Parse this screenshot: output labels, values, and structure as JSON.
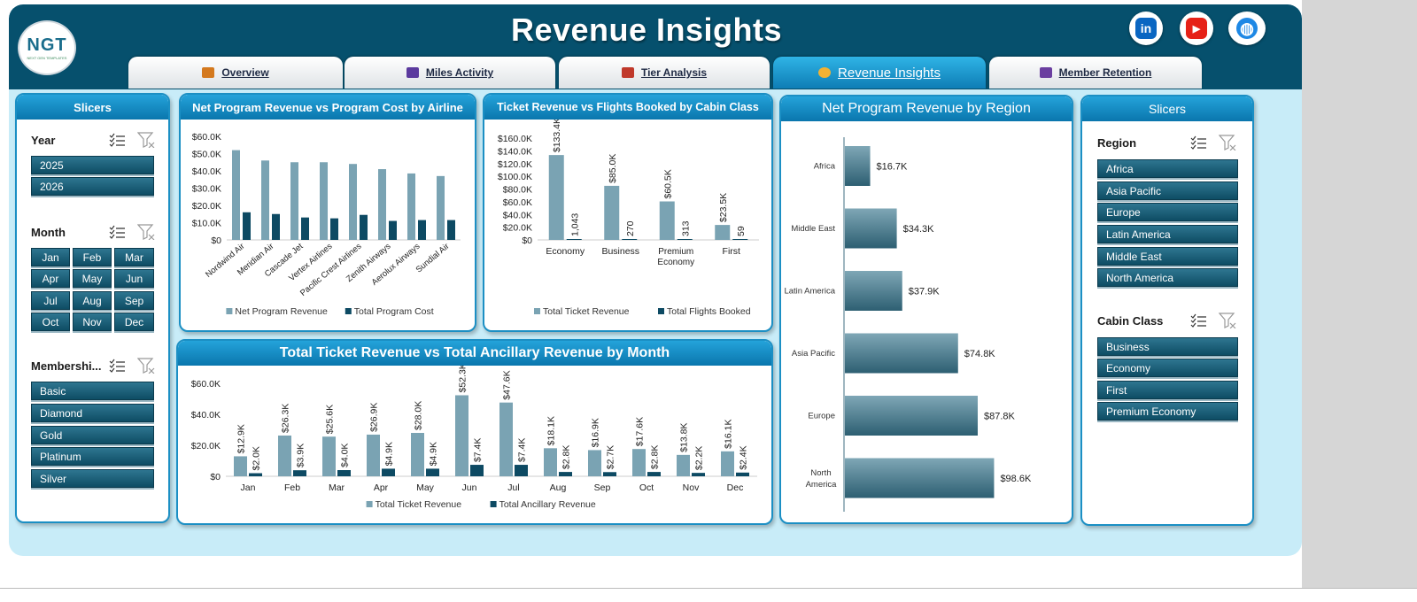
{
  "header": {
    "title": "Revenue Insights",
    "logo_text": "NGT",
    "logo_sub": "NEXT GEN TEMPLATES"
  },
  "social": [
    {
      "name": "linkedin-icon",
      "glyph": "in",
      "color": "#0a66c2"
    },
    {
      "name": "youtube-icon",
      "glyph": "▶",
      "color": "#e62117"
    },
    {
      "name": "globe-icon",
      "glyph": "◍",
      "color": "#1e88e5"
    }
  ],
  "tabs": [
    {
      "label": "Overview",
      "icon_color": "#d4791e",
      "active": false
    },
    {
      "label": "Miles Activity",
      "icon_color": "#5b3a9e",
      "active": false
    },
    {
      "label": "Tier Analysis",
      "icon_color": "#c0392b",
      "active": false
    },
    {
      "label": "Revenue Insights",
      "icon_color": "#f2b233",
      "active": true
    },
    {
      "label": "Member Retention",
      "icon_color": "#6b3fa0",
      "active": false
    }
  ],
  "left_slicers": {
    "title": "Slicers",
    "year": {
      "title": "Year",
      "items": [
        "2025",
        "2026"
      ]
    },
    "month": {
      "title": "Month",
      "items": [
        "Jan",
        "Feb",
        "Mar",
        "Apr",
        "May",
        "Jun",
        "Jul",
        "Aug",
        "Sep",
        "Oct",
        "Nov",
        "Dec"
      ]
    },
    "membership": {
      "title": "Membershi...",
      "items": [
        "Basic",
        "Diamond",
        "Gold",
        "Platinum",
        "Silver"
      ]
    }
  },
  "right_slicers": {
    "title": "Slicers",
    "region": {
      "title": "Region",
      "items": [
        "Africa",
        "Asia Pacific",
        "Europe",
        "Latin America",
        "Middle East",
        "North America"
      ]
    },
    "cabin": {
      "title": "Cabin Class",
      "items": [
        "Business",
        "Economy",
        "First",
        "Premium Economy"
      ]
    }
  },
  "colors": {
    "light_bar": "#7aa3b3",
    "dark_bar": "#0d4a63",
    "accent": "#1b8fc4"
  },
  "chart_data": [
    {
      "id": "airline",
      "type": "bar",
      "title": "Net Program Revenue vs Program Cost by Airline",
      "categories": [
        "Nordwind Air",
        "Meridian Air",
        "Cascade Jet",
        "Vertex Airlines",
        "Pacific Crest Airlines",
        "Zenith Airways",
        "Aerolux Airways",
        "Sundial Air"
      ],
      "series": [
        {
          "name": "Net Program Revenue",
          "values": [
            52000,
            46000,
            45000,
            45000,
            44000,
            41000,
            38500,
            37000
          ]
        },
        {
          "name": "Total Program Cost",
          "values": [
            16000,
            15000,
            13000,
            12500,
            14500,
            11000,
            11500,
            11500
          ]
        }
      ],
      "yticks": [
        "$0",
        "$10.0K",
        "$20.0K",
        "$30.0K",
        "$40.0K",
        "$50.0K",
        "$60.0K"
      ],
      "ylim": [
        0,
        60000
      ],
      "legend": "bottom"
    },
    {
      "id": "cabin",
      "type": "bar",
      "title": "Ticket Revenue vs Flights Booked by Cabin Class",
      "categories": [
        "Economy",
        "Business",
        "Premium Economy",
        "First"
      ],
      "series": [
        {
          "name": "Total Ticket Revenue",
          "values": [
            133400,
            85000,
            60500,
            23500
          ],
          "labels": [
            "$133.4K",
            "$85.0K",
            "$60.5K",
            "$23.5K"
          ]
        },
        {
          "name": "Total Flights Booked",
          "values": [
            1043,
            270,
            313,
            59
          ],
          "labels": [
            "1,043",
            "270",
            "313",
            "59"
          ]
        }
      ],
      "yticks": [
        "$0",
        "$20.0K",
        "$40.0K",
        "$60.0K",
        "$80.0K",
        "$100.0K",
        "$120.0K",
        "$140.0K",
        "$160.0K"
      ],
      "ylim": [
        0,
        160000
      ],
      "legend": "bottom"
    },
    {
      "id": "monthly",
      "type": "bar",
      "title": "Total Ticket Revenue vs Total Ancillary Revenue by Month",
      "categories": [
        "Jan",
        "Feb",
        "Mar",
        "Apr",
        "May",
        "Jun",
        "Jul",
        "Aug",
        "Sep",
        "Oct",
        "Nov",
        "Dec"
      ],
      "series": [
        {
          "name": "Total Ticket Revenue",
          "values": [
            12900,
            26300,
            25600,
            26900,
            28000,
            52300,
            47600,
            18100,
            16900,
            17600,
            13800,
            16100
          ],
          "labels": [
            "$12.9K",
            "$26.3K",
            "$25.6K",
            "$26.9K",
            "$28.0K",
            "$52.3K",
            "$47.6K",
            "$18.1K",
            "$16.9K",
            "$17.6K",
            "$13.8K",
            "$16.1K"
          ]
        },
        {
          "name": "Total Ancillary Revenue",
          "values": [
            2000,
            3900,
            4000,
            4900,
            4900,
            7400,
            7400,
            2800,
            2700,
            2800,
            2200,
            2400
          ],
          "labels": [
            "$2.0K",
            "$3.9K",
            "$4.0K",
            "$4.9K",
            "$4.9K",
            "$7.4K",
            "$7.4K",
            "$2.8K",
            "$2.7K",
            "$2.8K",
            "$2.2K",
            "$2.4K"
          ]
        }
      ],
      "yticks": [
        "$0",
        "$20.0K",
        "$40.0K",
        "$60.0K"
      ],
      "ylim": [
        0,
        60000
      ],
      "legend": "bottom"
    },
    {
      "id": "region",
      "type": "bar",
      "title": "Net Program Revenue by Region",
      "categories": [
        "Africa",
        "Middle East",
        "Latin America",
        "Asia Pacific",
        "Europe",
        "North America"
      ],
      "series": [
        {
          "name": "Net Program Revenue",
          "values": [
            16700,
            34300,
            37900,
            74800,
            87800,
            98600
          ],
          "labels": [
            "$16.7K",
            "$34.3K",
            "$37.9K",
            "$74.8K",
            "$87.8K",
            "$98.6K"
          ]
        }
      ],
      "xlim": [
        0,
        120000
      ],
      "orientation": "horizontal"
    }
  ]
}
